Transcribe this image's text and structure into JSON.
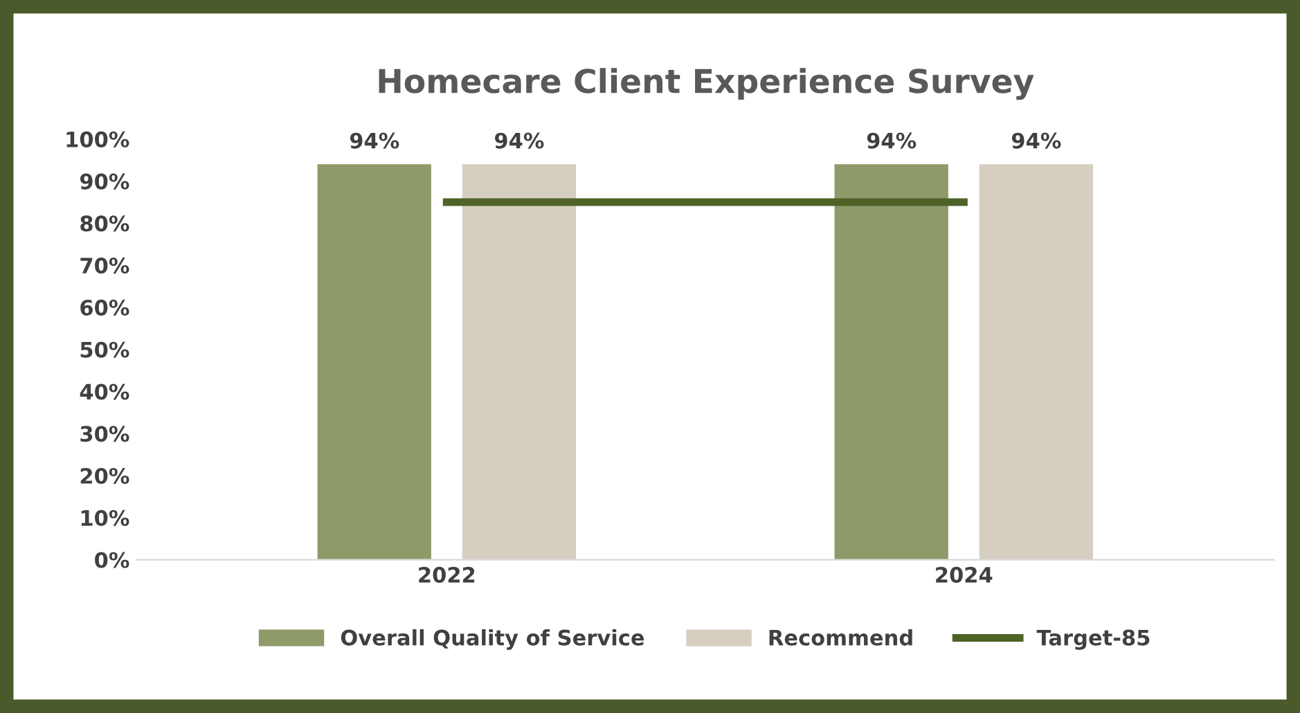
{
  "chart_data": {
    "type": "bar",
    "title": "Homecare Client Experience Survey",
    "categories": [
      "2022",
      "2024"
    ],
    "series": [
      {
        "name": "Overall Quality of Service",
        "color": "#8f9a6a",
        "values": [
          94,
          94
        ],
        "value_labels": [
          "94%",
          "94%"
        ]
      },
      {
        "name": "Recommend",
        "color": "#d6cfc1",
        "values": [
          94,
          94
        ],
        "value_labels": [
          "94%",
          "94%"
        ]
      },
      {
        "name": "Target-85",
        "type": "line",
        "color": "#4f6228",
        "values": [
          85,
          85
        ]
      }
    ],
    "ylim": [
      0,
      100
    ],
    "yticks": [
      {
        "value": 0,
        "label": "0%"
      },
      {
        "value": 10,
        "label": "10%"
      },
      {
        "value": 20,
        "label": "20%"
      },
      {
        "value": 30,
        "label": "30%"
      },
      {
        "value": 40,
        "label": "40%"
      },
      {
        "value": 50,
        "label": "50%"
      },
      {
        "value": 60,
        "label": "60%"
      },
      {
        "value": 70,
        "label": "70%"
      },
      {
        "value": 80,
        "label": "80%"
      },
      {
        "value": 90,
        "label": "90%"
      },
      {
        "value": 100,
        "label": "100%"
      }
    ],
    "grid": false,
    "legend": "bottom"
  }
}
